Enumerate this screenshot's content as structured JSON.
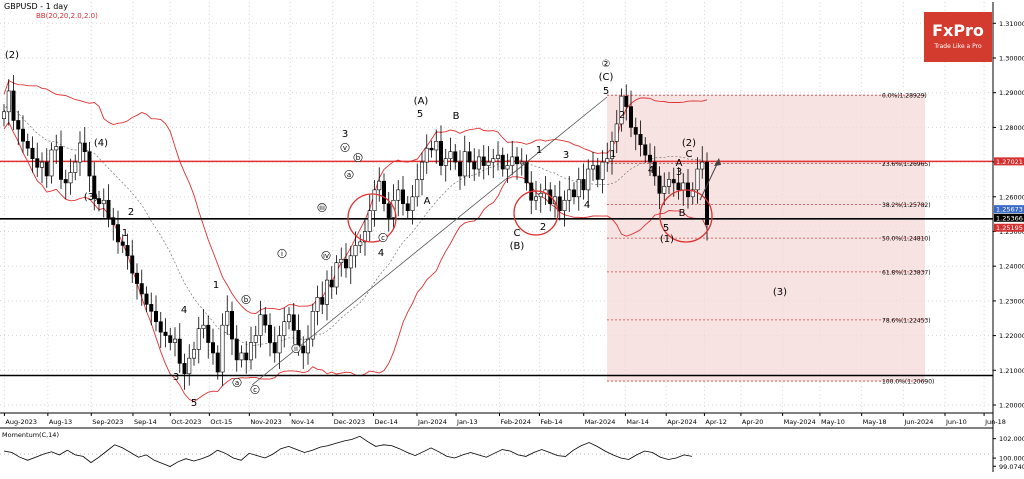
{
  "chart_data": {
    "type": "candlestick",
    "title": "GBPUSD - 1 day",
    "indicator_label": "BB(20,20,2.0,2.0)",
    "logo": {
      "brand": "FxPro",
      "tagline": "Trade Like a Pro",
      "color": "#d43b2f"
    },
    "colors": {
      "bands": "#e03030",
      "price_line": "#d43030",
      "support_line": "#000000",
      "fib_fill": "#f6dada"
    },
    "x_labels": [
      "Aug-2023",
      "Aug-13",
      "Sep-2023",
      "Sep-14",
      "Oct-2023",
      "Oct-15",
      "Nov-2023",
      "Nov-14",
      "Dec-2023",
      "Dec-14",
      "Jan-2024",
      "Jan-13",
      "Feb-2024",
      "Feb-14",
      "Mar-2024",
      "Mar-14",
      "Apr-2024",
      "Apr-12",
      "Apr-20",
      "May-2024",
      "May-10",
      "May-18",
      "Jun-2024",
      "Jun-10",
      "Jun-18"
    ],
    "y_ticks": [
      1.31,
      1.3,
      1.29,
      1.28,
      1.27,
      1.26,
      1.25,
      1.24,
      1.23,
      1.22,
      1.21,
      1.2
    ],
    "y_tick_labels": [
      "1.31000",
      "1.30000",
      "1.29000",
      "1.28000",
      "1.27000",
      "1.26000",
      "1.25000",
      "1.24000",
      "1.23000",
      "1.22000",
      "1.21000",
      "1.20000"
    ],
    "ylim": [
      1.197,
      1.316
    ],
    "price_tags": [
      {
        "value": 1.27021,
        "label": "1.27021",
        "color": "#d43030"
      },
      {
        "value": 1.25673,
        "label": "1.25673",
        "color": "#3b6bc5"
      },
      {
        "value": 1.25366,
        "label": "1.25366",
        "color": "#000000"
      },
      {
        "value": 1.25195,
        "label": "1.25195",
        "color": "#d43030"
      }
    ],
    "horizontal_lines": [
      {
        "value": 1.27021,
        "color": "#e03030",
        "role": "resistance"
      },
      {
        "value": 1.25366,
        "color": "#000000",
        "role": "support"
      },
      {
        "value": 1.2085,
        "color": "#000000",
        "role": "support"
      }
    ],
    "fibonacci": {
      "levels": [
        {
          "label": "0.0%(1.28929)",
          "value": 1.28929
        },
        {
          "label": "23.6%(1.26965)",
          "value": 1.26965
        },
        {
          "label": "38.2%(1.25782)",
          "value": 1.25782
        },
        {
          "label": "50.0%(1.24810)",
          "value": 1.2481
        },
        {
          "label": "61.8%(1.23837)",
          "value": 1.23837
        },
        {
          "label": "78.6%(1.22453)",
          "value": 1.22453
        },
        {
          "label": "100.0%(1.20690)",
          "value": 1.2069
        }
      ]
    },
    "wave_labels": [
      "(2)",
      "(4)",
      "(3)",
      "2",
      "1",
      "4",
      "3",
      "5",
      "(1)",
      "1",
      "a",
      "b",
      "c",
      "i",
      "ii",
      "iii",
      "iv",
      "v",
      "3",
      "4",
      "5",
      "(A)",
      "A",
      "B",
      "(B)",
      "1",
      "2",
      "3",
      "4",
      "5",
      "(C)",
      "②",
      "1",
      "2",
      "3",
      "4",
      "5",
      "A",
      "B",
      "C",
      "(2)",
      "(1)",
      "(3)",
      "a",
      "b",
      "c",
      "C",
      "②",
      "(C)"
    ],
    "series": [
      {
        "name": "GBPUSD",
        "close": [
          1.2845,
          1.2905,
          1.282,
          1.2795,
          1.276,
          1.274,
          1.271,
          1.2685,
          1.27,
          1.266,
          1.2735,
          1.2745,
          1.265,
          1.264,
          1.267,
          1.27,
          1.2755,
          1.273,
          1.266,
          1.2595,
          1.258,
          1.259,
          1.254,
          1.252,
          1.247,
          1.246,
          1.243,
          1.238,
          1.235,
          1.232,
          1.229,
          1.227,
          1.224,
          1.221,
          1.22,
          1.218,
          1.219,
          1.212,
          1.209,
          1.2135,
          1.216,
          1.222,
          1.223,
          1.218,
          1.215,
          1.2095,
          1.223,
          1.227,
          1.219,
          1.213,
          1.215,
          1.213,
          1.218,
          1.22,
          1.226,
          1.223,
          1.218,
          1.215,
          1.22,
          1.224,
          1.226,
          1.2215,
          1.217,
          1.215,
          1.219,
          1.227,
          1.231,
          1.229,
          1.236,
          1.234,
          1.241,
          1.242,
          1.2395,
          1.243,
          1.246,
          1.247,
          1.25,
          1.256,
          1.262,
          1.2645,
          1.258,
          1.254,
          1.259,
          1.262,
          1.258,
          1.256,
          1.26,
          1.265,
          1.27,
          1.274,
          1.2735,
          1.276,
          1.269,
          1.271,
          1.273,
          1.27,
          1.266,
          1.273,
          1.27,
          1.268,
          1.2715,
          1.269,
          1.27,
          1.271,
          1.272,
          1.268,
          1.269,
          1.2715,
          1.2695,
          1.27,
          1.264,
          1.259,
          1.26,
          1.261,
          1.262,
          1.258,
          1.26,
          1.256,
          1.259,
          1.262,
          1.26,
          1.265,
          1.262,
          1.268,
          1.269,
          1.265,
          1.27,
          1.271,
          1.276,
          1.281,
          1.289,
          1.286,
          1.28,
          1.278,
          1.275,
          1.272,
          1.27,
          1.266,
          1.261,
          1.263,
          1.265,
          1.264,
          1.262,
          1.264,
          1.26,
          1.262,
          1.268,
          1.27,
          1.252
        ]
      }
    ],
    "momentum": {
      "label": "Momentum(C,14)",
      "y_tick_labels": [
        "102.000",
        "100.000",
        "99.0740"
      ],
      "values": [
        100.4,
        100.2,
        99.6,
        99.2,
        99.6,
        100.0,
        100.3,
        99.9,
        100.5,
        99.9,
        99.7,
        98.9,
        99.6,
        100.4,
        101.2,
        100.8,
        100.2,
        99.6,
        99.9,
        99.2,
        98.8,
        98.4,
        99.0,
        99.4,
        99.1,
        99.4,
        99.8,
        100.5,
        100.1,
        99.5,
        99.2,
        100.1,
        99.8,
        99.5,
        100.0,
        100.7,
        101.0,
        100.6,
        100.2,
        100.5,
        100.9,
        101.1,
        101.4,
        101.7,
        101.9,
        102.3,
        101.6,
        101.0,
        101.2,
        101.1,
        100.7,
        100.2,
        99.8,
        100.3,
        100.8,
        100.3,
        99.7,
        99.5,
        99.9,
        100.2,
        99.9,
        99.6,
        100.1,
        100.6,
        100.4,
        99.9,
        99.7,
        100.2,
        100.6,
        100.2,
        99.8,
        99.7,
        100.5,
        101.1,
        101.5,
        101.0,
        100.4,
        99.9,
        99.5,
        99.3,
        99.9,
        100.4,
        100.2,
        99.6,
        99.3,
        99.5,
        99.9,
        99.7
      ]
    }
  }
}
